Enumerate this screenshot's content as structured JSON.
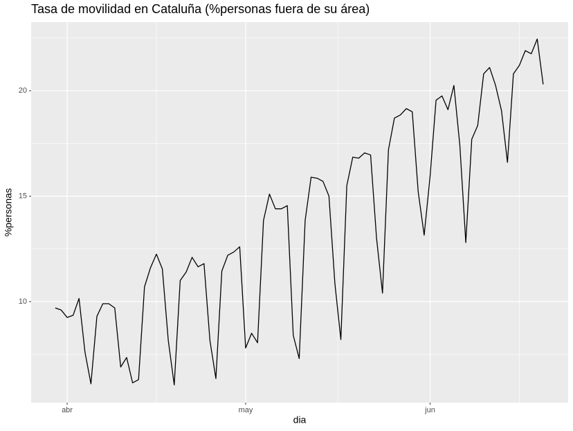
{
  "chart_data": {
    "type": "line",
    "title": "Tasa de movilidad en Cataluña (%personas fuera de su área)",
    "xlabel": "dia",
    "ylabel": "%personas",
    "x": [
      -2,
      -1,
      0,
      1,
      2,
      3,
      4,
      5,
      6,
      7,
      8,
      9,
      10,
      11,
      12,
      13,
      14,
      15,
      16,
      17,
      18,
      19,
      20,
      21,
      22,
      23,
      24,
      25,
      26,
      27,
      28,
      29,
      30,
      31,
      32,
      33,
      34,
      35,
      36,
      37,
      38,
      39,
      40,
      41,
      42,
      43,
      44,
      45,
      46,
      47,
      48,
      49,
      50,
      51,
      52,
      53,
      54,
      55,
      56,
      57,
      58,
      59,
      60,
      61,
      62,
      63,
      64,
      65,
      66,
      67,
      68,
      69,
      70,
      71,
      72,
      73,
      74,
      75,
      76,
      77,
      78,
      79,
      80
    ],
    "values": [
      9.7,
      9.6,
      9.25,
      9.35,
      10.15,
      7.6,
      6.1,
      9.3,
      9.9,
      9.9,
      9.7,
      6.9,
      7.35,
      6.15,
      6.3,
      10.7,
      11.6,
      12.25,
      11.55,
      8.15,
      6.05,
      11.0,
      11.4,
      12.1,
      11.65,
      11.8,
      8.15,
      6.35,
      11.45,
      12.2,
      12.35,
      12.6,
      7.8,
      8.5,
      8.05,
      13.85,
      15.1,
      14.4,
      14.4,
      14.55,
      8.4,
      7.3,
      13.85,
      15.9,
      15.85,
      15.7,
      15.0,
      10.85,
      8.2,
      15.5,
      16.85,
      16.8,
      17.05,
      16.95,
      13.0,
      10.4,
      17.2,
      18.7,
      18.85,
      19.15,
      19.0,
      15.2,
      13.15,
      15.95,
      19.55,
      19.75,
      19.1,
      20.25,
      17.4,
      12.8,
      17.7,
      18.35,
      20.8,
      21.1,
      20.25,
      19.05,
      16.6,
      20.8,
      21.2,
      21.9,
      21.75,
      22.45,
      20.3
    ],
    "color": "#000000",
    "xlim": [
      -6.05,
      84.2
    ],
    "xticks": [
      {
        "value": 0,
        "label": "abr"
      },
      {
        "value": 30,
        "label": "may"
      },
      {
        "value": 61,
        "label": "jun"
      }
    ],
    "ylim": [
      5.21,
      23.25
    ],
    "yticks": [
      10,
      15,
      20
    ],
    "grid": true
  }
}
